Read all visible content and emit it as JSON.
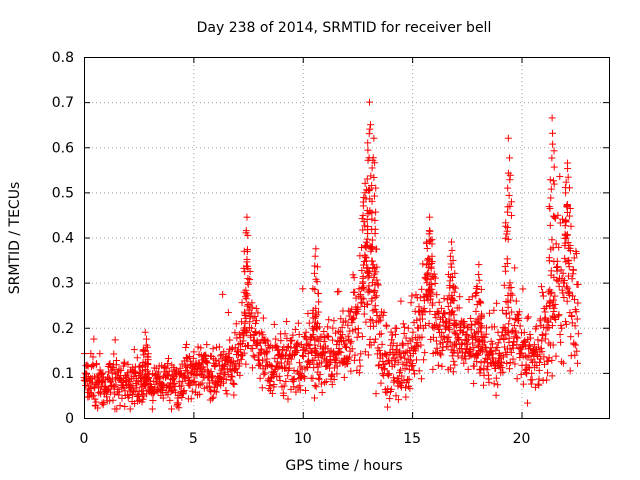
{
  "chart_data": {
    "type": "scatter",
    "title": "Day 238 of 2014, SRMTID for receiver bell",
    "xlabel": "GPS time / hours",
    "ylabel": "SRMTID / TECUs",
    "xlim": [
      0,
      24
    ],
    "ylim": [
      0,
      0.8
    ],
    "xticks": [
      "0",
      "5",
      "10",
      "15",
      "20"
    ],
    "yticks": [
      "0",
      "0.1",
      "0.2",
      "0.3",
      "0.4",
      "0.5",
      "0.6",
      "0.7",
      "0.8"
    ],
    "grid": true,
    "marker": "+",
    "color": "#ff0000",
    "envelope": {
      "x": [
        0,
        0.5,
        1,
        1.5,
        2,
        2.5,
        3,
        3.5,
        4,
        4.5,
        5,
        5.5,
        6,
        6.5,
        7,
        7.3,
        7.5,
        7.8,
        8,
        8.5,
        9,
        9.5,
        10,
        10.3,
        10.5,
        11,
        11.5,
        12,
        12.5,
        12.8,
        13.0,
        13.2,
        13.4,
        13.6,
        14,
        14.5,
        15,
        15.5,
        15.7,
        16,
        16.5,
        17,
        17.5,
        18,
        18.5,
        19,
        19.3,
        19.5,
        19.8,
        20,
        20.5,
        21,
        21.3,
        21.6,
        21.9,
        22.2,
        22.5
      ],
      "mean": [
        0.09,
        0.085,
        0.08,
        0.08,
        0.075,
        0.07,
        0.07,
        0.075,
        0.08,
        0.09,
        0.1,
        0.1,
        0.1,
        0.11,
        0.13,
        0.18,
        0.2,
        0.18,
        0.15,
        0.12,
        0.12,
        0.13,
        0.12,
        0.14,
        0.14,
        0.13,
        0.14,
        0.16,
        0.22,
        0.28,
        0.3,
        0.25,
        0.2,
        0.15,
        0.13,
        0.12,
        0.13,
        0.22,
        0.3,
        0.22,
        0.19,
        0.18,
        0.17,
        0.16,
        0.14,
        0.13,
        0.2,
        0.22,
        0.19,
        0.15,
        0.13,
        0.16,
        0.22,
        0.28,
        0.3,
        0.3,
        0.25
      ],
      "spread": [
        0.04,
        0.04,
        0.04,
        0.04,
        0.035,
        0.035,
        0.035,
        0.035,
        0.04,
        0.04,
        0.04,
        0.04,
        0.045,
        0.045,
        0.05,
        0.06,
        0.07,
        0.06,
        0.05,
        0.05,
        0.05,
        0.05,
        0.05,
        0.06,
        0.06,
        0.05,
        0.05,
        0.06,
        0.08,
        0.1,
        0.12,
        0.1,
        0.08,
        0.07,
        0.06,
        0.06,
        0.06,
        0.08,
        0.09,
        0.07,
        0.06,
        0.06,
        0.06,
        0.06,
        0.05,
        0.05,
        0.07,
        0.08,
        0.07,
        0.06,
        0.05,
        0.07,
        0.08,
        0.1,
        0.1,
        0.1,
        0.08
      ]
    },
    "peaks": [
      {
        "x": 2.8,
        "y": 0.19
      },
      {
        "x": 7.45,
        "y": 0.445
      },
      {
        "x": 10.6,
        "y": 0.375
      },
      {
        "x": 12.85,
        "y": 0.52
      },
      {
        "x": 13.05,
        "y": 0.7
      },
      {
        "x": 13.25,
        "y": 0.62
      },
      {
        "x": 15.8,
        "y": 0.445
      },
      {
        "x": 16.8,
        "y": 0.39
      },
      {
        "x": 18.05,
        "y": 0.34
      },
      {
        "x": 19.4,
        "y": 0.62
      },
      {
        "x": 21.4,
        "y": 0.665
      },
      {
        "x": 22.1,
        "y": 0.565
      }
    ]
  }
}
